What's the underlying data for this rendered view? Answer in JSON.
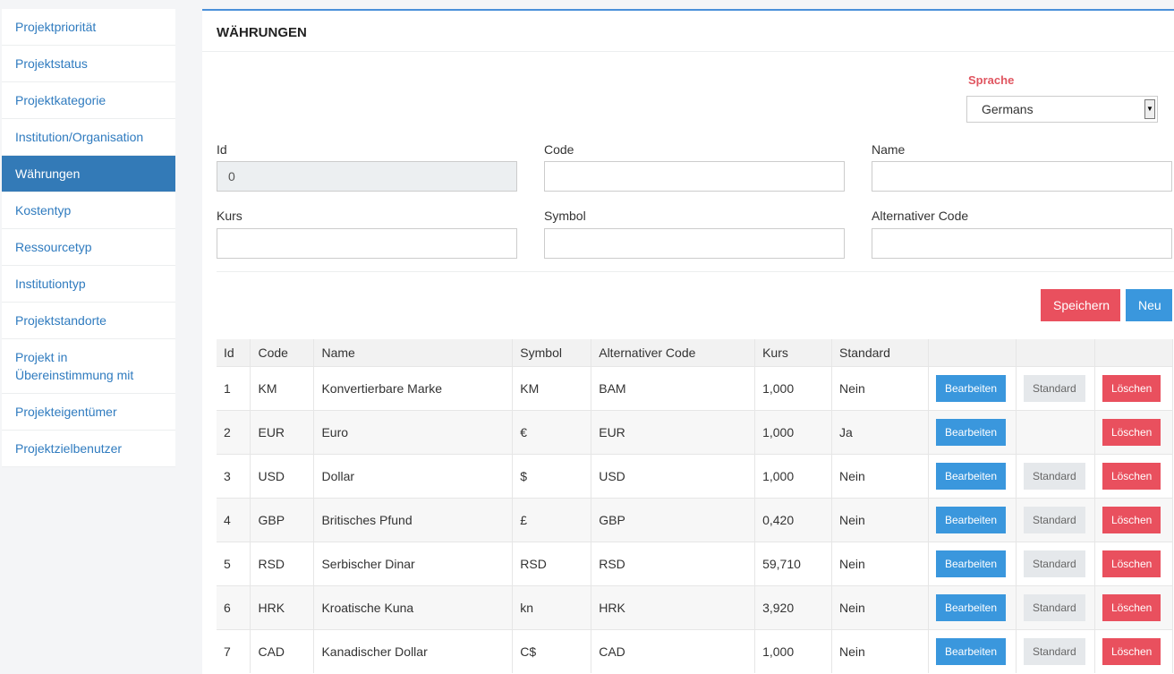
{
  "sidebar": {
    "items": [
      {
        "label": "Projektpriorität",
        "active": false
      },
      {
        "label": "Projektstatus",
        "active": false
      },
      {
        "label": "Projektkategorie",
        "active": false
      },
      {
        "label": "Institution/Organisation",
        "active": false
      },
      {
        "label": "Währungen",
        "active": true
      },
      {
        "label": "Kostentyp",
        "active": false
      },
      {
        "label": "Ressourcetyp",
        "active": false
      },
      {
        "label": "Institutiontyp",
        "active": false
      },
      {
        "label": "Projektstandorte",
        "active": false
      },
      {
        "label": "Projekt in\nÜbereinstimmung mit",
        "active": false
      },
      {
        "label": "Projekteigentümer",
        "active": false
      },
      {
        "label": "Projektzielbenutzer",
        "active": false
      }
    ]
  },
  "main": {
    "title": "WÄHRUNGEN",
    "language": {
      "label": "Sprache",
      "value": "Germans"
    },
    "form": {
      "id_label": "Id",
      "id_value": "0",
      "code_label": "Code",
      "code_value": "",
      "name_label": "Name",
      "name_value": "",
      "kurs_label": "Kurs",
      "kurs_value": "",
      "symbol_label": "Symbol",
      "symbol_value": "",
      "altcode_label": "Alternativer Code",
      "altcode_value": ""
    },
    "buttons": {
      "save": "Speichern",
      "new": "Neu"
    },
    "table": {
      "headers": [
        "Id",
        "Code",
        "Name",
        "Symbol",
        "Alternativer Code",
        "Kurs",
        "Standard",
        "",
        "",
        ""
      ],
      "edit_label": "Bearbeiten",
      "standard_label": "Standard",
      "delete_label": "Löschen",
      "rows": [
        {
          "id": "1",
          "code": "KM",
          "name": "Konvertierbare Marke",
          "symbol": "KM",
          "alt": "BAM",
          "kurs": "1,000",
          "standard": "Nein",
          "show_std_btn": true
        },
        {
          "id": "2",
          "code": "EUR",
          "name": "Euro",
          "symbol": "€",
          "alt": "EUR",
          "kurs": "1,000",
          "standard": "Ja",
          "show_std_btn": false
        },
        {
          "id": "3",
          "code": "USD",
          "name": "Dollar",
          "symbol": "$",
          "alt": "USD",
          "kurs": "1,000",
          "standard": "Nein",
          "show_std_btn": true
        },
        {
          "id": "4",
          "code": "GBP",
          "name": "Britisches Pfund",
          "symbol": "£",
          "alt": "GBP",
          "kurs": "0,420",
          "standard": "Nein",
          "show_std_btn": true
        },
        {
          "id": "5",
          "code": "RSD",
          "name": "Serbischer Dinar",
          "symbol": "RSD",
          "alt": "RSD",
          "kurs": "59,710",
          "standard": "Nein",
          "show_std_btn": true
        },
        {
          "id": "6",
          "code": "HRK",
          "name": "Kroatische Kuna",
          "symbol": "kn",
          "alt": "HRK",
          "kurs": "3,920",
          "standard": "Nein",
          "show_std_btn": true
        },
        {
          "id": "7",
          "code": "CAD",
          "name": "Kanadischer Dollar",
          "symbol": "C$",
          "alt": "CAD",
          "kurs": "1,000",
          "standard": "Nein",
          "show_std_btn": true
        }
      ]
    }
  }
}
